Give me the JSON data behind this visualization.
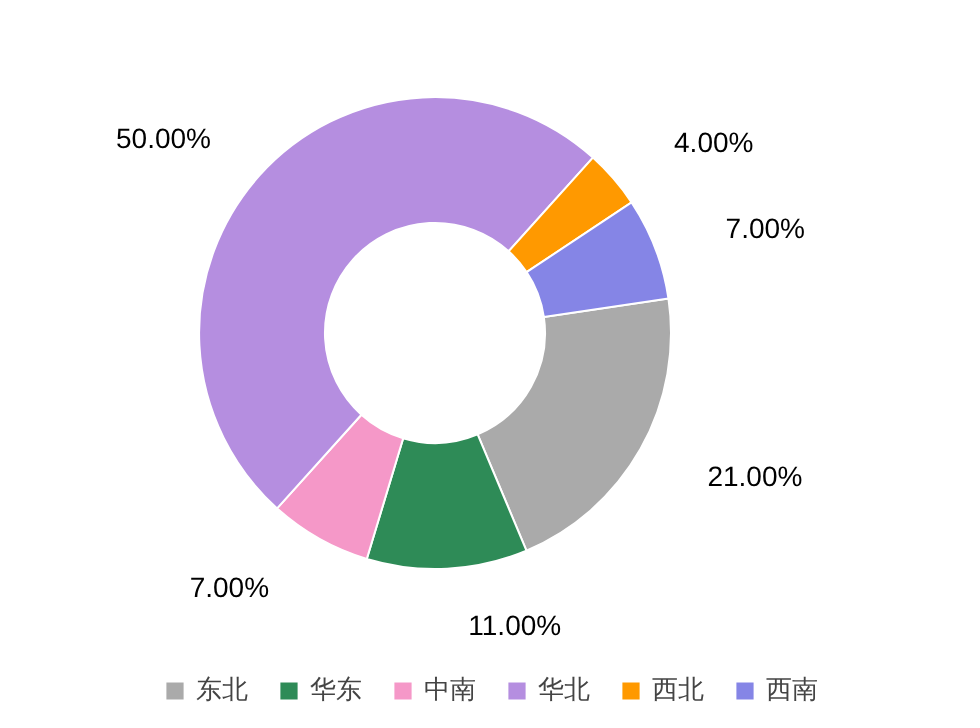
{
  "chart_data": {
    "type": "donut",
    "categories": [
      "东北",
      "华东",
      "中南",
      "华北",
      "西北",
      "西南"
    ],
    "values": [
      21,
      11,
      7,
      50,
      4,
      7
    ],
    "value_labels": [
      "21.00%",
      "11.00%",
      "7.00%",
      "50.00%",
      "4.00%",
      "7.00%"
    ],
    "colors": [
      "#aaaaaa",
      "#2e8b57",
      "#f598c8",
      "#b58ee0",
      "#ff9900",
      "#8585e6"
    ],
    "legend": "bottom"
  }
}
